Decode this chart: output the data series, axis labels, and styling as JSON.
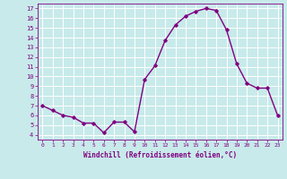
{
  "x": [
    0,
    1,
    2,
    3,
    4,
    5,
    6,
    7,
    8,
    9,
    10,
    11,
    12,
    13,
    14,
    15,
    16,
    17,
    18,
    19,
    20,
    21,
    22,
    23
  ],
  "y": [
    7.0,
    6.5,
    6.0,
    5.8,
    5.2,
    5.2,
    4.2,
    5.3,
    5.3,
    4.3,
    9.7,
    11.1,
    13.7,
    15.3,
    16.2,
    16.7,
    17.0,
    16.8,
    14.8,
    11.3,
    9.3,
    8.8,
    8.8,
    6.0
  ],
  "line_color": "#800080",
  "marker": "D",
  "marker_size": 1.8,
  "line_width": 1.0,
  "xlim": [
    -0.5,
    23.5
  ],
  "ylim": [
    3.5,
    17.5
  ],
  "yticks": [
    4,
    5,
    6,
    7,
    8,
    9,
    10,
    11,
    12,
    13,
    14,
    15,
    16,
    17
  ],
  "xticks": [
    0,
    1,
    2,
    3,
    4,
    5,
    6,
    7,
    8,
    9,
    10,
    11,
    12,
    13,
    14,
    15,
    16,
    17,
    18,
    19,
    20,
    21,
    22,
    23
  ],
  "xlabel": "Windchill (Refroidissement éolien,°C)",
  "background_color": "#c8eaea",
  "grid_color": "#ffffff",
  "tick_color": "#800080",
  "label_color": "#800080"
}
